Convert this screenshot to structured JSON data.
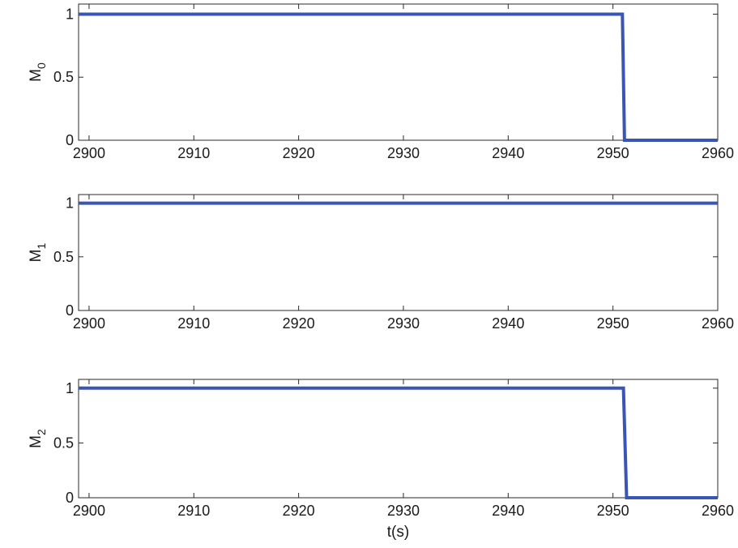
{
  "chart_data": [
    {
      "type": "line",
      "ylabel_main": "M",
      "ylabel_sub": "0",
      "xlabel": "",
      "xlim": [
        2899,
        2960
      ],
      "ylim": [
        0,
        1.08
      ],
      "xticks": [
        2900,
        2910,
        2920,
        2930,
        2940,
        2950,
        2960
      ],
      "yticks": [
        0,
        0.5,
        1
      ],
      "xtick_labels": [
        "2900",
        "2910",
        "2920",
        "2930",
        "2940",
        "2950",
        "2960"
      ],
      "ytick_labels": [
        "0",
        "0.5",
        "1"
      ],
      "grid": false,
      "line_color": "#3a56b4",
      "series": [
        {
          "x": [
            2899,
            2950.9,
            2951.1,
            2960
          ],
          "y": [
            1,
            1,
            0,
            0
          ]
        }
      ]
    },
    {
      "type": "line",
      "ylabel_main": "M",
      "ylabel_sub": "1",
      "xlabel": "",
      "xlim": [
        2899,
        2960
      ],
      "ylim": [
        0,
        1.08
      ],
      "xticks": [
        2900,
        2910,
        2920,
        2930,
        2940,
        2950,
        2960
      ],
      "yticks": [
        0,
        0.5,
        1
      ],
      "xtick_labels": [
        "2900",
        "2910",
        "2920",
        "2930",
        "2940",
        "2950",
        "2960"
      ],
      "ytick_labels": [
        "0",
        "0.5",
        "1"
      ],
      "grid": false,
      "line_color": "#3a56b4",
      "series": [
        {
          "x": [
            2899,
            2960
          ],
          "y": [
            1,
            1
          ]
        }
      ]
    },
    {
      "type": "line",
      "ylabel_main": "M",
      "ylabel_sub": "2",
      "xlabel": "t(s)",
      "xlim": [
        2899,
        2960
      ],
      "ylim": [
        0,
        1.08
      ],
      "xticks": [
        2900,
        2910,
        2920,
        2930,
        2940,
        2950,
        2960
      ],
      "yticks": [
        0,
        0.5,
        1
      ],
      "xtick_labels": [
        "2900",
        "2910",
        "2920",
        "2930",
        "2940",
        "2950",
        "2960"
      ],
      "ytick_labels": [
        "0",
        "0.5",
        "1"
      ],
      "grid": false,
      "line_color": "#3a56b4",
      "series": [
        {
          "x": [
            2899,
            2951.0,
            2951.3,
            2960
          ],
          "y": [
            1,
            1,
            0,
            0
          ]
        }
      ]
    }
  ]
}
